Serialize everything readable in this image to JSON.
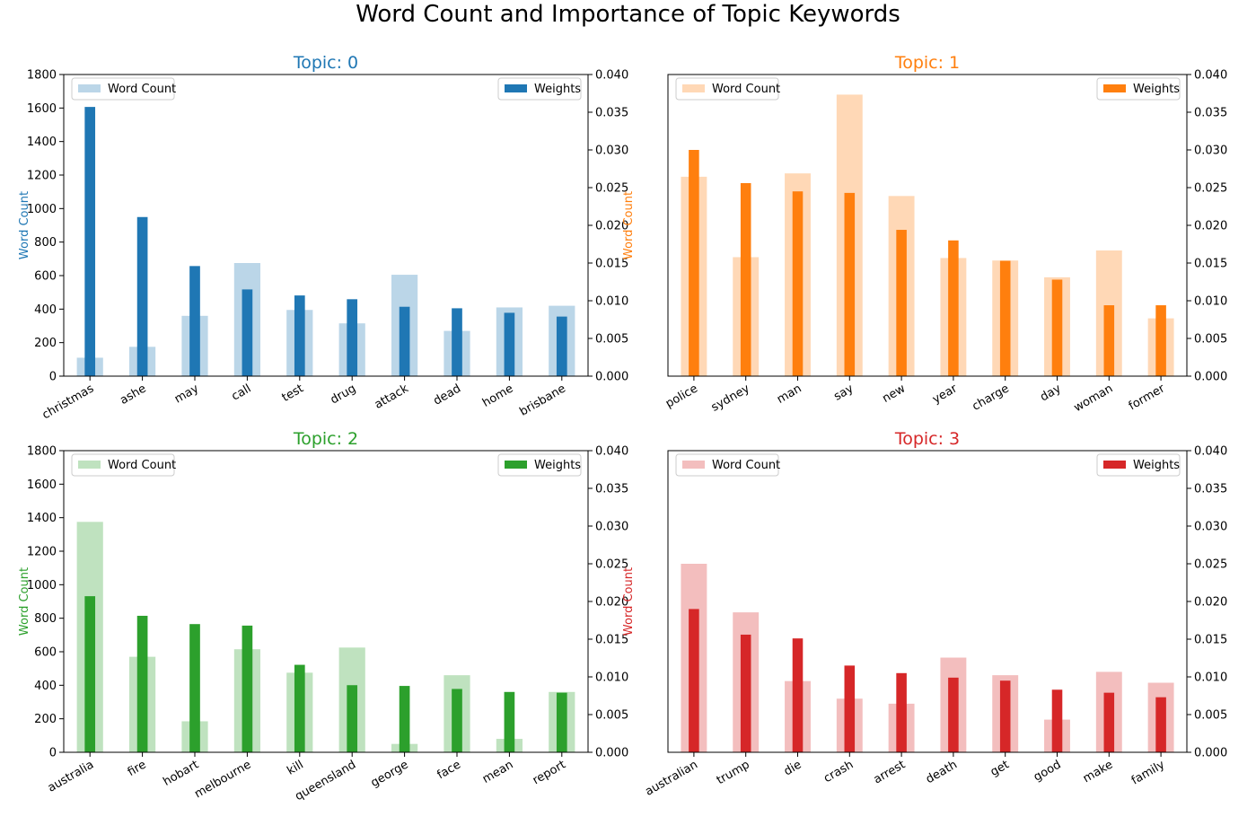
{
  "title": "Word Count and Importance of Topic Keywords",
  "legend": {
    "count_label": "Word Count",
    "weight_label": "Weights"
  },
  "chart_data": [
    {
      "type": "bar",
      "title": "Topic: 0",
      "color": "#1f77b4",
      "ylabel": "Word Count",
      "ylim": [
        0,
        1800
      ],
      "y2lim": [
        0,
        0.04
      ],
      "yticks": [
        0,
        200,
        400,
        600,
        800,
        1000,
        1200,
        1400,
        1600,
        1800
      ],
      "y2ticks": [
        "0.000",
        "0.005",
        "0.010",
        "0.015",
        "0.020",
        "0.025",
        "0.030",
        "0.035",
        "0.040"
      ],
      "categories": [
        "christmas",
        "ashe",
        "may",
        "call",
        "test",
        "drug",
        "attack",
        "dead",
        "home",
        "brisbane"
      ],
      "series": [
        {
          "name": "Word Count",
          "axis": "left",
          "values": [
            110,
            175,
            360,
            675,
            395,
            315,
            605,
            270,
            410,
            420
          ]
        },
        {
          "name": "Weights",
          "axis": "right",
          "values": [
            0.0357,
            0.0211,
            0.0146,
            0.0115,
            0.0107,
            0.0102,
            0.0092,
            0.009,
            0.0084,
            0.0079
          ]
        }
      ]
    },
    {
      "type": "bar",
      "title": "Topic: 1",
      "color": "#ff7f0e",
      "ylabel": "Word Count",
      "ylim": [
        0,
        1800
      ],
      "y2lim": [
        0,
        0.04
      ],
      "yticks": [],
      "y2ticks": [
        "0.000",
        "0.005",
        "0.010",
        "0.015",
        "0.020",
        "0.025",
        "0.030",
        "0.035",
        "0.040"
      ],
      "categories": [
        "police",
        "sydney",
        "man",
        "say",
        "new",
        "year",
        "charge",
        "day",
        "woman",
        "former"
      ],
      "series": [
        {
          "name": "Word Count",
          "axis": "left",
          "values": [
            1190,
            710,
            1210,
            1680,
            1075,
            705,
            690,
            590,
            750,
            345
          ]
        },
        {
          "name": "Weights",
          "axis": "right",
          "values": [
            0.03,
            0.0256,
            0.0245,
            0.0243,
            0.0194,
            0.018,
            0.0153,
            0.0128,
            0.0094,
            0.0094
          ]
        }
      ]
    },
    {
      "type": "bar",
      "title": "Topic: 2",
      "color": "#2ca02c",
      "ylabel": "Word Count",
      "ylim": [
        0,
        1800
      ],
      "y2lim": [
        0,
        0.04
      ],
      "yticks": [
        0,
        200,
        400,
        600,
        800,
        1000,
        1200,
        1400,
        1600,
        1800
      ],
      "y2ticks": [
        "0.000",
        "0.005",
        "0.010",
        "0.015",
        "0.020",
        "0.025",
        "0.030",
        "0.035",
        "0.040"
      ],
      "categories": [
        "australia",
        "fire",
        "hobart",
        "melbourne",
        "kill",
        "queensland",
        "george",
        "face",
        "mean",
        "report"
      ],
      "series": [
        {
          "name": "Word Count",
          "axis": "left",
          "values": [
            1375,
            570,
            185,
            615,
            475,
            625,
            50,
            460,
            80,
            360
          ]
        },
        {
          "name": "Weights",
          "axis": "right",
          "values": [
            0.0207,
            0.0181,
            0.017,
            0.0168,
            0.0116,
            0.0089,
            0.0088,
            0.0084,
            0.008,
            0.0079
          ]
        }
      ]
    },
    {
      "type": "bar",
      "title": "Topic: 3",
      "color": "#d62728",
      "ylabel": "Word Count",
      "ylim": [
        0,
        1800
      ],
      "y2lim": [
        0,
        0.04
      ],
      "yticks": [],
      "y2ticks": [
        "0.000",
        "0.005",
        "0.010",
        "0.015",
        "0.020",
        "0.025",
        "0.030",
        "0.035",
        "0.040"
      ],
      "categories": [
        "australian",
        "trump",
        "die",
        "crash",
        "arrest",
        "death",
        "get",
        "good",
        "make",
        "family"
      ],
      "series": [
        {
          "name": "Word Count",
          "axis": "left",
          "values": [
            1125,
            835,
            425,
            320,
            290,
            565,
            460,
            195,
            480,
            415
          ]
        },
        {
          "name": "Weights",
          "axis": "right",
          "values": [
            0.019,
            0.0156,
            0.0151,
            0.0115,
            0.0105,
            0.0099,
            0.0095,
            0.0083,
            0.0079,
            0.0073
          ]
        }
      ]
    }
  ]
}
